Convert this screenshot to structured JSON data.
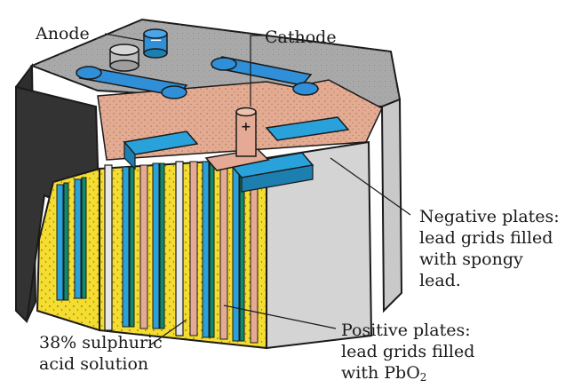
{
  "labels": {
    "anode": "Anode",
    "cathode": "Cathode",
    "negative": {
      "line1": "Negative plates:",
      "line2": "lead grids filled",
      "line3": "with spongy",
      "line4": "lead."
    },
    "positive": {
      "line1": "Positive plates:",
      "line2": "lead grids filled",
      "line3": "with PbO",
      "line3_sub": "2"
    },
    "acid": {
      "line1": "38% sulphuric",
      "line2": "acid solution"
    }
  },
  "terminals": {
    "anode_symbol": "−",
    "cathode_symbol": "+"
  },
  "colors": {
    "case_dark": "#2e2e2e",
    "case_top": "#a9a9a9",
    "case_side": "#c9c9c9",
    "cap_pink": "#e3ab92",
    "electrolyte_yellow": "#f5dd2f",
    "plate_blue": "#29a2dc",
    "plate_green": "#0f8a6e",
    "plate_pink": "#e4aa96",
    "terminal_blue": "#2f8fd8",
    "window_gray": "#d4d4d4",
    "ink": "#1a1a1a"
  }
}
